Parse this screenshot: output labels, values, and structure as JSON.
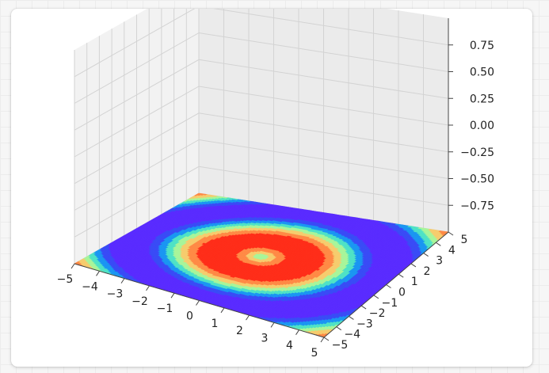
{
  "chart_data": {
    "type": "surface-contour-3d",
    "title": "",
    "x_ticks": [
      "−5",
      "−4",
      "−3",
      "−2",
      "−1",
      "0",
      "1",
      "2",
      "3",
      "4",
      "5"
    ],
    "y_ticks": [
      "−5",
      "−4",
      "−3",
      "−2",
      "−1",
      "0",
      "1",
      "2",
      "3",
      "4",
      "5"
    ],
    "z_ticks": [
      "0.75",
      "0.50",
      "0.25",
      "0.00",
      "−0.25",
      "−0.50",
      "−0.75"
    ],
    "xlim": [
      -5,
      5
    ],
    "ylim": [
      -5,
      5
    ],
    "zlim": [
      -1,
      1
    ],
    "z_levels": [
      -0.75,
      -0.5,
      -0.25,
      0.0,
      0.25,
      0.5,
      0.75
    ],
    "function": "sin(sqrt(x^2 + y^2))",
    "colormap": "rainbow",
    "band_colors": [
      "#5a2cff",
      "#3a4cf6",
      "#1b96f2",
      "#4fe2c6",
      "#a8f59a",
      "#f6cc6e",
      "#ff8a46",
      "#ff2e1a"
    ],
    "grid": true
  }
}
